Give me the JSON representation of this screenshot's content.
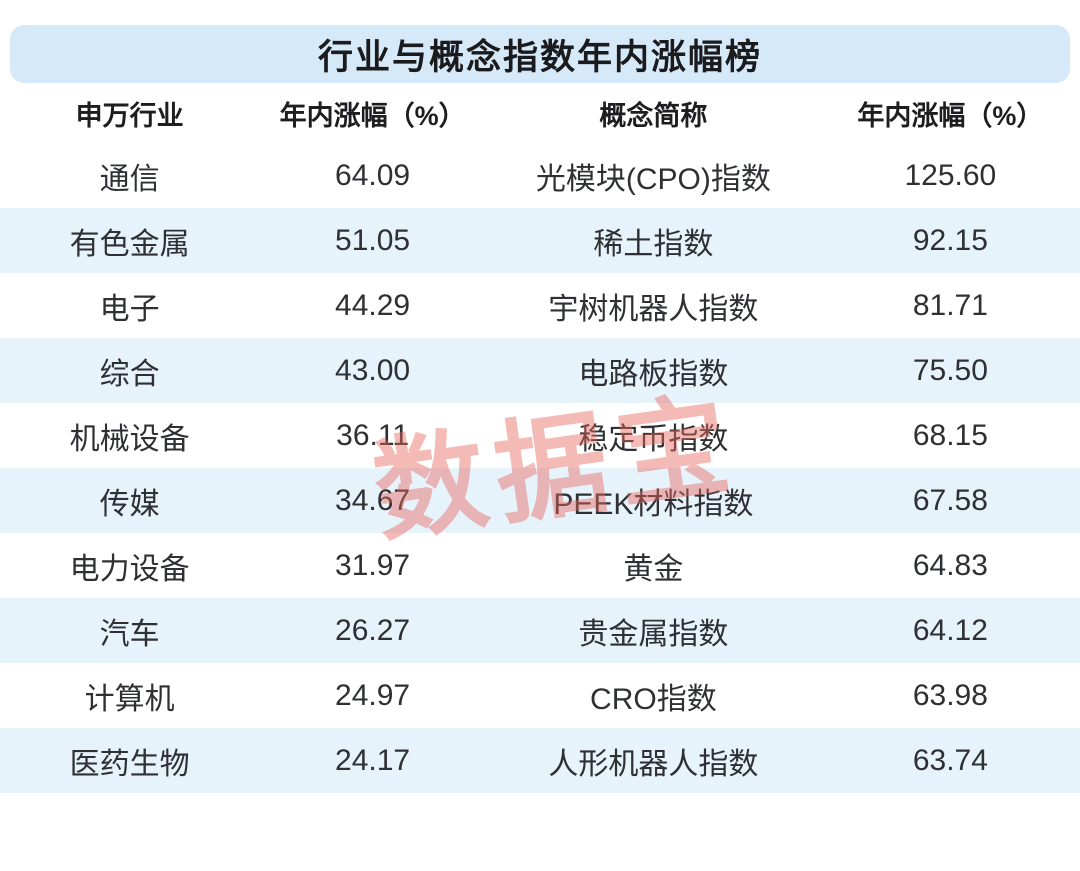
{
  "title": "行业与概念指数年内涨幅榜",
  "watermark": "数据宝",
  "colors": {
    "banner-bg": "#d6e9f8",
    "stripe-bg": "#e7f3fb",
    "page-bg": "#ffffff",
    "title-color": "#1b1b1d",
    "header-color": "#1e1e20",
    "cell-color": "#2f3033",
    "watermark-color": "rgba(231,103,94,0.45)"
  },
  "table": {
    "headers": [
      "申万行业",
      "年内涨幅（%）",
      "概念简称",
      "年内涨幅（%）"
    ],
    "rows": [
      {
        "industry": "通信",
        "industry_gain": "64.09",
        "concept": "光模块(CPO)指数",
        "concept_gain": "125.60"
      },
      {
        "industry": "有色金属",
        "industry_gain": "51.05",
        "concept": "稀土指数",
        "concept_gain": "92.15"
      },
      {
        "industry": "电子",
        "industry_gain": "44.29",
        "concept": "宇树机器人指数",
        "concept_gain": "81.71"
      },
      {
        "industry": "综合",
        "industry_gain": "43.00",
        "concept": "电路板指数",
        "concept_gain": "75.50"
      },
      {
        "industry": "机械设备",
        "industry_gain": "36.11",
        "concept": "稳定币指数",
        "concept_gain": "68.15"
      },
      {
        "industry": "传媒",
        "industry_gain": "34.67",
        "concept": "PEEK材料指数",
        "concept_gain": "67.58"
      },
      {
        "industry": "电力设备",
        "industry_gain": "31.97",
        "concept": "黄金",
        "concept_gain": "64.83"
      },
      {
        "industry": "汽车",
        "industry_gain": "26.27",
        "concept": "贵金属指数",
        "concept_gain": "64.12"
      },
      {
        "industry": "计算机",
        "industry_gain": "24.97",
        "concept": "CRO指数",
        "concept_gain": "63.98"
      },
      {
        "industry": "医药生物",
        "industry_gain": "24.17",
        "concept": "人形机器人指数",
        "concept_gain": "63.74"
      }
    ]
  },
  "chart_data": {
    "type": "table",
    "title": "行业与概念指数年内涨幅榜",
    "columns": [
      "申万行业",
      "年内涨幅（%）",
      "概念简称",
      "年内涨幅（%）"
    ],
    "rows": [
      [
        "通信",
        64.09,
        "光模块(CPO)指数",
        125.6
      ],
      [
        "有色金属",
        51.05,
        "稀土指数",
        92.15
      ],
      [
        "电子",
        44.29,
        "宇树机器人指数",
        81.71
      ],
      [
        "综合",
        43.0,
        "电路板指数",
        75.5
      ],
      [
        "机械设备",
        36.11,
        "稳定币指数",
        68.15
      ],
      [
        "传媒",
        34.67,
        "PEEK材料指数",
        67.58
      ],
      [
        "电力设备",
        31.97,
        "黄金",
        64.83
      ],
      [
        "汽车",
        26.27,
        "贵金属指数",
        64.12
      ],
      [
        "计算机",
        24.97,
        "CRO指数",
        63.98
      ],
      [
        "医药生物",
        24.17,
        "人形机器人指数",
        63.74
      ]
    ],
    "watermark": "数据宝",
    "layout_hints": {
      "striped_rows": "even rows light blue",
      "header_style": "bold black on white",
      "title_style": "bold black on light-blue rounded banner"
    }
  }
}
